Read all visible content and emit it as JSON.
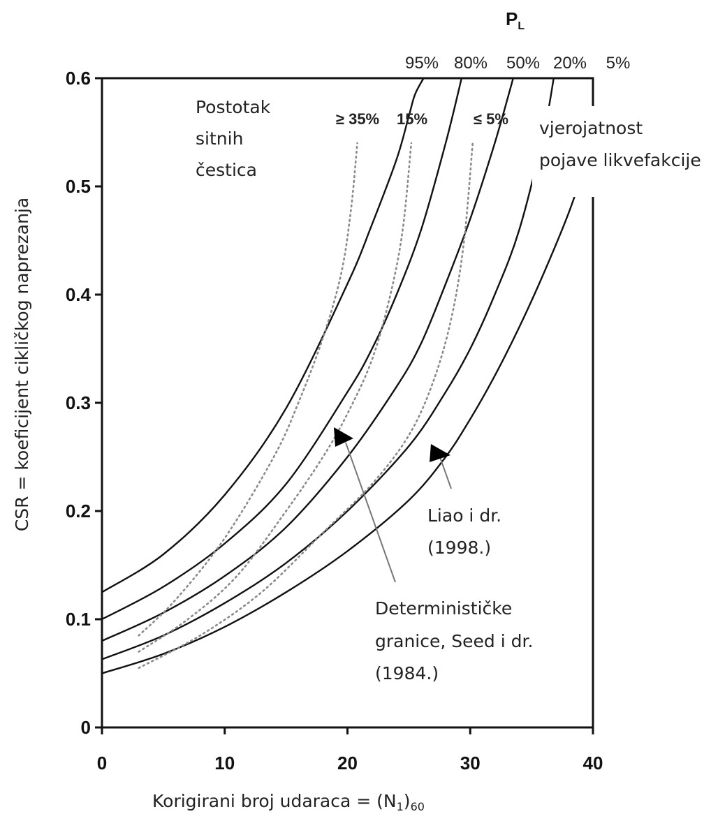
{
  "chart_data": {
    "type": "line",
    "title_main": "P",
    "title_sub": "L",
    "xlabel_main": "Korigirani broj udaraca = (N",
    "xlabel_sub1": "1",
    "xlabel_mid": ")",
    "xlabel_sub2": "60",
    "ylabel": "CSR = koeficijent cikličkog naprezanja",
    "xlim": [
      0,
      40
    ],
    "ylim": [
      0,
      0.6
    ],
    "x_ticks": [
      "0",
      "10",
      "20",
      "30",
      "40"
    ],
    "y_ticks": [
      "0",
      "0.1",
      "0.2",
      "0.3",
      "0.4",
      "0.5",
      "0.6"
    ],
    "grid": false,
    "probability_labels": [
      "95%",
      "80%",
      "50%",
      "20%",
      "5%"
    ],
    "fines_labels": [
      "≥ 35%",
      "15%",
      "≤ 5%"
    ],
    "series": [
      {
        "name": "95%",
        "style": "solid",
        "x": [
          0,
          5,
          10,
          15,
          20,
          22,
          24,
          25,
          25.5,
          26.2
        ],
        "y": [
          0.125,
          0.16,
          0.215,
          0.295,
          0.41,
          0.465,
          0.525,
          0.565,
          0.585,
          0.6
        ]
      },
      {
        "name": "80%",
        "style": "solid",
        "x": [
          0,
          5,
          10,
          15,
          20,
          22,
          24,
          26,
          28,
          29.3
        ],
        "y": [
          0.1,
          0.13,
          0.17,
          0.225,
          0.31,
          0.35,
          0.4,
          0.46,
          0.54,
          0.6
        ]
      },
      {
        "name": "50%",
        "style": "solid",
        "x": [
          0,
          5,
          10,
          15,
          20,
          24,
          26,
          28,
          30,
          32,
          33.5
        ],
        "y": [
          0.08,
          0.106,
          0.14,
          0.185,
          0.25,
          0.315,
          0.355,
          0.41,
          0.47,
          0.54,
          0.6
        ]
      },
      {
        "name": "20%",
        "style": "solid",
        "x": [
          0,
          5,
          10,
          15,
          20,
          25,
          28,
          30,
          32,
          34,
          36,
          36.8
        ],
        "y": [
          0.063,
          0.085,
          0.115,
          0.152,
          0.2,
          0.26,
          0.31,
          0.35,
          0.4,
          0.46,
          0.55,
          0.6
        ]
      },
      {
        "name": "5%",
        "style": "solid",
        "x": [
          0,
          5,
          10,
          15,
          20,
          25,
          28,
          30,
          32,
          34,
          36,
          38,
          40
        ],
        "y": [
          0.05,
          0.068,
          0.093,
          0.125,
          0.163,
          0.21,
          0.25,
          0.285,
          0.325,
          0.37,
          0.42,
          0.475,
          0.54
        ]
      },
      {
        "name": "≥ 35%",
        "style": "dotted",
        "x": [
          3,
          6,
          10,
          14,
          16,
          18,
          19.5,
          20.3,
          20.8
        ],
        "y": [
          0.085,
          0.118,
          0.175,
          0.25,
          0.3,
          0.36,
          0.42,
          0.48,
          0.54
        ]
      },
      {
        "name": "15%",
        "style": "dotted",
        "x": [
          3,
          7,
          11,
          15,
          18,
          20,
          22,
          23.5,
          24.5,
          25.2
        ],
        "y": [
          0.07,
          0.1,
          0.14,
          0.2,
          0.25,
          0.29,
          0.34,
          0.4,
          0.46,
          0.54
        ]
      },
      {
        "name": "≤ 5%",
        "style": "dotted",
        "x": [
          3,
          8,
          13,
          18,
          22,
          25,
          27,
          28.5,
          29.5,
          30.2
        ],
        "y": [
          0.055,
          0.085,
          0.125,
          0.18,
          0.225,
          0.27,
          0.32,
          0.38,
          0.45,
          0.54
        ]
      }
    ],
    "annotations": [
      {
        "id": "fines_label",
        "lines": [
          "Postotak",
          "sitnih",
          "čestica"
        ]
      },
      {
        "id": "prob_label",
        "lines": [
          "vjerojatnost",
          "pojave likvefakcije"
        ]
      },
      {
        "id": "liao_label",
        "lines": [
          "Liao i dr.",
          "(1998.)"
        ]
      },
      {
        "id": "seed_label",
        "lines": [
          "Determinističke",
          "granice, Seed i dr.",
          "(1984.)"
        ]
      }
    ]
  }
}
